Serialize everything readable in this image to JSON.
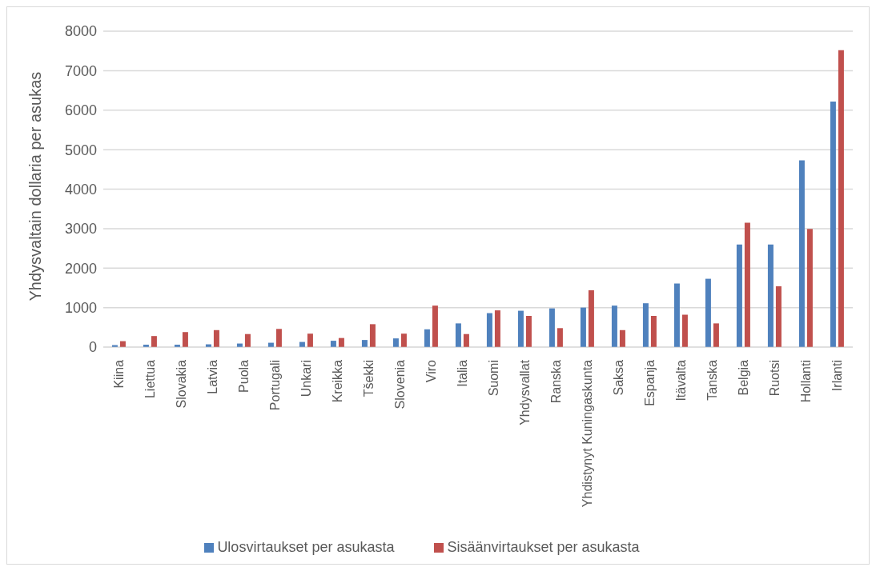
{
  "chart_data": {
    "type": "bar",
    "ylabel": "Yhdysvaltain dollaria per asukas",
    "categories": [
      "Kiina",
      "Liettua",
      "Slovakia",
      "Latvia",
      "Puola",
      "Portugali",
      "Unkari",
      "Kreikka",
      "Tšekki",
      "Slovenia",
      "Viro",
      "Italia",
      "Suomi",
      "Yhdysvallat",
      "Ranska",
      "Yhdistynyt Kuningaskunta",
      "Saksa",
      "Espanja",
      "Itävalta",
      "Tanska",
      "Belgia",
      "Ruotsi",
      "Hollanti",
      "Irlanti"
    ],
    "series": [
      {
        "name": "Ulosvirtaukset per asukasta",
        "color": "#4f81bd",
        "values": [
          50,
          60,
          60,
          70,
          90,
          110,
          130,
          160,
          180,
          220,
          450,
          600,
          860,
          920,
          980,
          1000,
          1050,
          1110,
          1610,
          1730,
          2600,
          2600,
          4730,
          6220
        ]
      },
      {
        "name": "Sisäänvirtaukset per asukasta",
        "color": "#c0504d",
        "values": [
          150,
          280,
          380,
          430,
          330,
          460,
          340,
          230,
          580,
          340,
          1050,
          330,
          930,
          790,
          480,
          1440,
          430,
          790,
          820,
          600,
          3150,
          1540,
          2990,
          7520
        ]
      }
    ],
    "ylim": [
      0,
      8000
    ],
    "yticks": [
      0,
      1000,
      2000,
      3000,
      4000,
      5000,
      6000,
      7000,
      8000
    ],
    "grid": "y",
    "legend": "bottom"
  }
}
